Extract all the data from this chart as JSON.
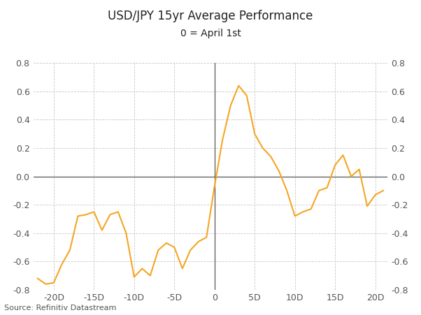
{
  "title": "USD/JPY 15yr Average Performance",
  "subtitle": "0 = April 1st",
  "source": "Source: Refinitiv Datastream",
  "line_color": "#F5A623",
  "background_color": "#ffffff",
  "grid_color": "#c8c8c8",
  "ylim": [
    -0.8,
    0.8
  ],
  "xlim": [
    -22.5,
    21.5
  ],
  "xticks": [
    -20,
    -15,
    -10,
    -5,
    0,
    5,
    10,
    15,
    20
  ],
  "xtick_labels": [
    "-20D",
    "-15D",
    "-10D",
    "-5D",
    "0",
    "5D",
    "10D",
    "15D",
    "20D"
  ],
  "yticks": [
    -0.8,
    -0.6,
    -0.4,
    -0.2,
    0.0,
    0.2,
    0.4,
    0.6,
    0.8
  ],
  "x": [
    -22,
    -21,
    -20,
    -19,
    -18,
    -17,
    -16,
    -15,
    -14,
    -13,
    -12,
    -11,
    -10,
    -9,
    -8,
    -7,
    -6,
    -5,
    -4,
    -3,
    -2,
    -1,
    0,
    1,
    2,
    3,
    4,
    5,
    6,
    7,
    8,
    9,
    10,
    11,
    12,
    13,
    14,
    15,
    16,
    17,
    18,
    19,
    20,
    21
  ],
  "y": [
    -0.72,
    -0.76,
    -0.75,
    -0.62,
    -0.52,
    -0.28,
    -0.27,
    -0.25,
    -0.38,
    -0.27,
    -0.25,
    -0.4,
    -0.71,
    -0.65,
    -0.7,
    -0.52,
    -0.47,
    -0.5,
    -0.65,
    -0.52,
    -0.46,
    -0.43,
    -0.07,
    0.26,
    0.5,
    0.64,
    0.57,
    0.3,
    0.2,
    0.14,
    0.04,
    -0.1,
    -0.28,
    -0.25,
    -0.23,
    -0.1,
    -0.08,
    0.08,
    0.15,
    0.0,
    0.05,
    -0.21,
    -0.13,
    -0.1
  ],
  "title_fontsize": 12,
  "subtitle_fontsize": 10,
  "tick_fontsize": 9,
  "source_fontsize": 8
}
